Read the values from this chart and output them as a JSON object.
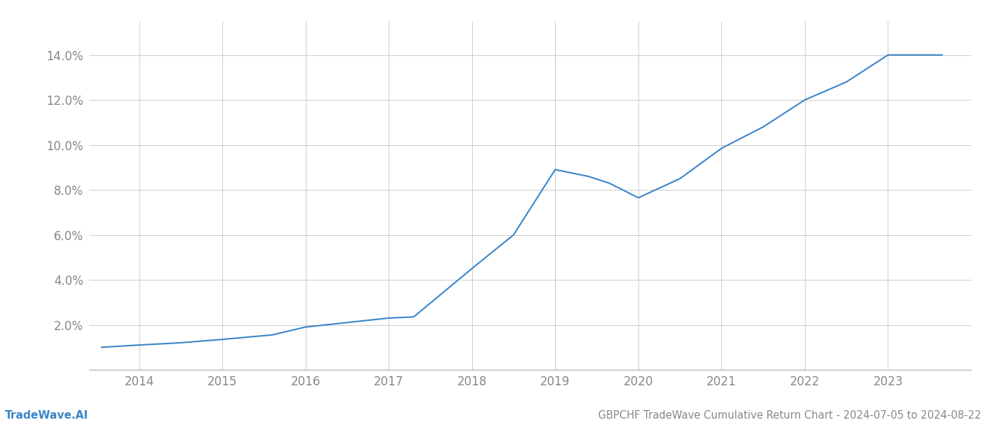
{
  "x_years": [
    2013.55,
    2014.0,
    2014.5,
    2015.0,
    2015.6,
    2016.0,
    2016.5,
    2017.0,
    2017.3,
    2018.0,
    2018.5,
    2019.0,
    2019.4,
    2019.65,
    2020.0,
    2020.5,
    2021.0,
    2021.5,
    2022.0,
    2022.5,
    2023.0,
    2023.65
  ],
  "y_values": [
    1.0,
    1.1,
    1.2,
    1.35,
    1.55,
    1.9,
    2.1,
    2.3,
    2.35,
    4.5,
    6.0,
    8.9,
    8.6,
    8.3,
    7.65,
    8.5,
    9.85,
    10.8,
    12.0,
    12.8,
    14.0,
    14.0
  ],
  "line_color": "#3a86c8",
  "line_width": 1.5,
  "background_color": "#ffffff",
  "grid_color": "#cccccc",
  "title": "GBPCHF TradeWave Cumulative Return Chart - 2024-07-05 to 2024-08-22",
  "title_fontsize": 10.5,
  "watermark": "TradeWave.AI",
  "watermark_fontsize": 11,
  "watermark_color": "#3a86c8",
  "xlim": [
    2013.4,
    2024.0
  ],
  "ylim": [
    0.0,
    15.5
  ],
  "yticks": [
    2.0,
    4.0,
    6.0,
    8.0,
    10.0,
    12.0,
    14.0
  ],
  "xtick_labels": [
    "2014",
    "2015",
    "2016",
    "2017",
    "2018",
    "2019",
    "2020",
    "2021",
    "2022",
    "2023"
  ],
  "xtick_positions": [
    2014,
    2015,
    2016,
    2017,
    2018,
    2019,
    2020,
    2021,
    2022,
    2023
  ],
  "tick_color": "#888888",
  "tick_fontsize": 12,
  "spine_color": "#aaaaaa"
}
